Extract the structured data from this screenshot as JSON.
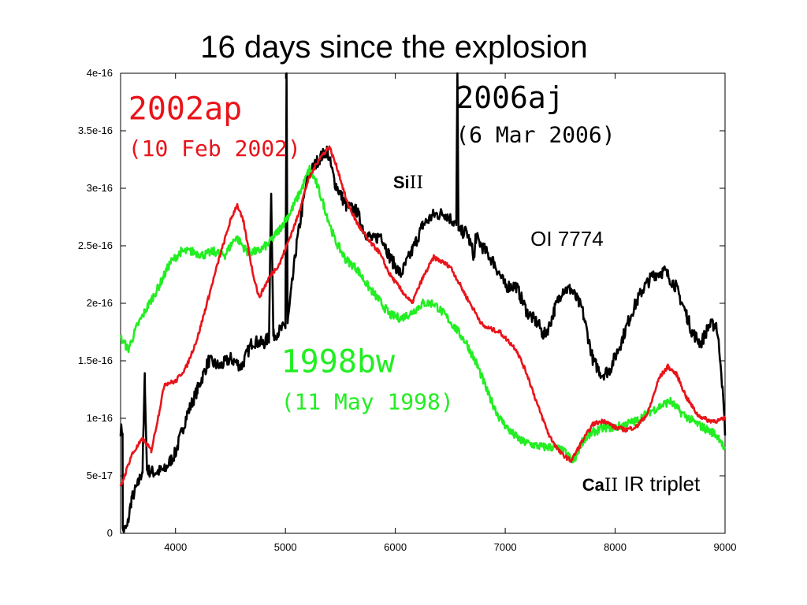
{
  "slide": {
    "title": "16 days since the explosion"
  },
  "chart_data": {
    "type": "line",
    "title": "16 days since the explosion",
    "xlabel": "",
    "ylabel": "",
    "xlim": [
      3500,
      9000
    ],
    "ylim": [
      0,
      4e-16
    ],
    "x_ticks": [
      "4000",
      "5000",
      "6000",
      "7000",
      "8000",
      "9000"
    ],
    "y_ticks": [
      "0",
      "5e-17",
      "1e-16",
      "1.5e-16",
      "2e-16",
      "2.5e-16",
      "3e-16",
      "3.5e-16",
      "4e-16"
    ],
    "series": [
      {
        "name": "2002ap",
        "date": "(10 Feb 2002)",
        "color": "#e8141a",
        "points": [
          [
            3500,
            4e-17
          ],
          [
            3600,
            6.8e-17
          ],
          [
            3700,
            8.2e-17
          ],
          [
            3780,
            7.2e-17
          ],
          [
            3850,
            1.05e-16
          ],
          [
            3900,
            1.3e-16
          ],
          [
            4000,
            1.32e-16
          ],
          [
            4100,
            1.45e-16
          ],
          [
            4200,
            1.7e-16
          ],
          [
            4300,
            2.05e-16
          ],
          [
            4400,
            2.4e-16
          ],
          [
            4500,
            2.72e-16
          ],
          [
            4560,
            2.86e-16
          ],
          [
            4620,
            2.7e-16
          ],
          [
            4700,
            2.28e-16
          ],
          [
            4760,
            2.05e-16
          ],
          [
            4850,
            2.22e-16
          ],
          [
            4950,
            2.35e-16
          ],
          [
            5100,
            2.72e-16
          ],
          [
            5200,
            3.05e-16
          ],
          [
            5300,
            3.25e-16
          ],
          [
            5400,
            3.36e-16
          ],
          [
            5480,
            3.15e-16
          ],
          [
            5560,
            2.88e-16
          ],
          [
            5650,
            2.7e-16
          ],
          [
            5750,
            2.55e-16
          ],
          [
            5850,
            2.45e-16
          ],
          [
            5950,
            2.25e-16
          ],
          [
            6050,
            2.12e-16
          ],
          [
            6150,
            2e-16
          ],
          [
            6250,
            2.22e-16
          ],
          [
            6350,
            2.4e-16
          ],
          [
            6500,
            2.32e-16
          ],
          [
            6650,
            2.05e-16
          ],
          [
            6800,
            1.8e-16
          ],
          [
            6950,
            1.75e-16
          ],
          [
            7100,
            1.6e-16
          ],
          [
            7200,
            1.38e-16
          ],
          [
            7300,
            1.1e-16
          ],
          [
            7400,
            8.5e-17
          ],
          [
            7500,
            7e-17
          ],
          [
            7600,
            6.3e-17
          ],
          [
            7700,
            8e-17
          ],
          [
            7800,
            9.5e-17
          ],
          [
            7900,
            9.8e-17
          ],
          [
            8000,
            9.2e-17
          ],
          [
            8100,
            9e-17
          ],
          [
            8200,
            9.3e-17
          ],
          [
            8300,
            1.05e-16
          ],
          [
            8400,
            1.35e-16
          ],
          [
            8480,
            1.45e-16
          ],
          [
            8560,
            1.38e-16
          ],
          [
            8650,
            1.18e-16
          ],
          [
            8750,
            1.03e-16
          ],
          [
            8850,
            9.8e-17
          ],
          [
            8950,
            9.8e-17
          ],
          [
            9000,
            1e-16
          ]
        ]
      },
      {
        "name": "2006aj",
        "date": "(6 Mar 2006)",
        "color": "#000000",
        "points": [
          [
            3520,
            2e-18
          ],
          [
            3560,
            5e-18
          ],
          [
            3600,
            3e-17
          ],
          [
            3660,
            4.3e-17
          ],
          [
            3700,
            5.5e-17
          ],
          [
            3720,
            1.35e-16
          ],
          [
            3740,
            5.5e-17
          ],
          [
            3800,
            5.3e-17
          ],
          [
            3900,
            5.5e-17
          ],
          [
            4000,
            7e-17
          ],
          [
            4100,
            1.02e-16
          ],
          [
            4200,
            1.25e-16
          ],
          [
            4300,
            1.5e-16
          ],
          [
            4400,
            1.45e-16
          ],
          [
            4500,
            1.52e-16
          ],
          [
            4600,
            1.45e-16
          ],
          [
            4700,
            1.67e-16
          ],
          [
            4800,
            1.65e-16
          ],
          [
            4850,
            1.7e-16
          ],
          [
            4870,
            3e-16
          ],
          [
            4890,
            1.72e-16
          ],
          [
            5000,
            1.8e-16
          ],
          [
            5010,
            4e-16
          ],
          [
            5020,
            1.82e-16
          ],
          [
            5100,
            2.5e-16
          ],
          [
            5200,
            3.1e-16
          ],
          [
            5300,
            3.25e-16
          ],
          [
            5380,
            3.33e-16
          ],
          [
            5450,
            3.05e-16
          ],
          [
            5550,
            2.85e-16
          ],
          [
            5650,
            2.8e-16
          ],
          [
            5720,
            2.62e-16
          ],
          [
            5800,
            2.55e-16
          ],
          [
            5870,
            2.6e-16
          ],
          [
            5950,
            2.4e-16
          ],
          [
            6050,
            2.25e-16
          ],
          [
            6150,
            2.45e-16
          ],
          [
            6250,
            2.68e-16
          ],
          [
            6350,
            2.77e-16
          ],
          [
            6450,
            2.78e-16
          ],
          [
            6520,
            2.72e-16
          ],
          [
            6555,
            2.68e-16
          ],
          [
            6565,
            4e-16
          ],
          [
            6575,
            2.62e-16
          ],
          [
            6650,
            2.62e-16
          ],
          [
            6720,
            2.4e-16
          ],
          [
            6730,
            2.58e-16
          ],
          [
            6800,
            2.48e-16
          ],
          [
            6900,
            2.35e-16
          ],
          [
            7000,
            2.15e-16
          ],
          [
            7100,
            2.15e-16
          ],
          [
            7200,
            1.92e-16
          ],
          [
            7300,
            1.82e-16
          ],
          [
            7350,
            1.72e-16
          ],
          [
            7400,
            1.8e-16
          ],
          [
            7450,
            1.95e-16
          ],
          [
            7520,
            2.12e-16
          ],
          [
            7600,
            2.12e-16
          ],
          [
            7700,
            1.95e-16
          ],
          [
            7800,
            1.5e-16
          ],
          [
            7880,
            1.38e-16
          ],
          [
            7950,
            1.42e-16
          ],
          [
            8050,
            1.65e-16
          ],
          [
            8150,
            1.92e-16
          ],
          [
            8250,
            2.12e-16
          ],
          [
            8350,
            2.25e-16
          ],
          [
            8450,
            2.28e-16
          ],
          [
            8550,
            2.15e-16
          ],
          [
            8650,
            1.9e-16
          ],
          [
            8700,
            1.75e-16
          ],
          [
            8780,
            1.65e-16
          ],
          [
            8850,
            1.8e-16
          ],
          [
            8920,
            1.82e-16
          ],
          [
            8960,
            1.5e-16
          ],
          [
            9000,
            9e-17
          ]
        ]
      },
      {
        "name": "1998bw",
        "date": "(11 May 1998)",
        "color": "#22ee22",
        "points": [
          [
            3500,
            1.7e-16
          ],
          [
            3570,
            1.6e-16
          ],
          [
            3650,
            1.8e-16
          ],
          [
            3750,
            1.98e-16
          ],
          [
            3850,
            2.15e-16
          ],
          [
            3950,
            2.35e-16
          ],
          [
            4050,
            2.45e-16
          ],
          [
            4150,
            2.45e-16
          ],
          [
            4250,
            2.42e-16
          ],
          [
            4350,
            2.45e-16
          ],
          [
            4450,
            2.42e-16
          ],
          [
            4550,
            2.58e-16
          ],
          [
            4650,
            2.45e-16
          ],
          [
            4750,
            2.45e-16
          ],
          [
            4850,
            2.52e-16
          ],
          [
            4950,
            2.65e-16
          ],
          [
            5050,
            2.8e-16
          ],
          [
            5150,
            3e-16
          ],
          [
            5220,
            3.17e-16
          ],
          [
            5280,
            3.05e-16
          ],
          [
            5350,
            2.85e-16
          ],
          [
            5450,
            2.55e-16
          ],
          [
            5550,
            2.38e-16
          ],
          [
            5650,
            2.3e-16
          ],
          [
            5750,
            2.15e-16
          ],
          [
            5850,
            2.03e-16
          ],
          [
            5950,
            1.9e-16
          ],
          [
            6050,
            1.87e-16
          ],
          [
            6150,
            1.92e-16
          ],
          [
            6250,
            2e-16
          ],
          [
            6350,
            2e-16
          ],
          [
            6450,
            1.9e-16
          ],
          [
            6550,
            1.78e-16
          ],
          [
            6650,
            1.65e-16
          ],
          [
            6750,
            1.45e-16
          ],
          [
            6850,
            1.2e-16
          ],
          [
            6950,
            1e-16
          ],
          [
            7050,
            8.8e-17
          ],
          [
            7150,
            8e-17
          ],
          [
            7250,
            7.7e-17
          ],
          [
            7350,
            7.5e-17
          ],
          [
            7450,
            7.5e-17
          ],
          [
            7550,
            7e-17
          ],
          [
            7620,
            6.2e-17
          ],
          [
            7700,
            8e-17
          ],
          [
            7800,
            8.8e-17
          ],
          [
            7900,
            9.2e-17
          ],
          [
            8000,
            9.2e-17
          ],
          [
            8100,
            9.5e-17
          ],
          [
            8200,
            9.8e-17
          ],
          [
            8300,
            1.05e-16
          ],
          [
            8400,
            1.1e-16
          ],
          [
            8500,
            1.15e-16
          ],
          [
            8600,
            1.05e-16
          ],
          [
            8700,
            9.8e-17
          ],
          [
            8800,
            9.2e-17
          ],
          [
            8900,
            8.7e-17
          ],
          [
            8960,
            8.2e-17
          ],
          [
            9000,
            7e-17
          ]
        ]
      }
    ],
    "annotations": [
      {
        "id": "si",
        "prefix": "Si",
        "suffix": "II",
        "x": 5980,
        "y": 3e-16
      },
      {
        "id": "oi",
        "text": "OI 7774",
        "x": 7230,
        "y": 2.5e-16
      },
      {
        "id": "ca",
        "prefix": "Ca",
        "suffix": "II",
        "tail": " IR triplet",
        "x": 7700,
        "y": 3.7e-17
      }
    ],
    "legend_labels": [
      {
        "series": "2002ap",
        "x": 3570,
        "y": 3.6e-16,
        "date_y": 3.28e-16
      },
      {
        "series": "2006aj",
        "x": 6550,
        "y": 3.7e-16,
        "date_y": 3.4e-16
      },
      {
        "series": "1998bw",
        "x": 4960,
        "y": 1.4e-16,
        "date_y": 1.08e-16
      }
    ]
  }
}
